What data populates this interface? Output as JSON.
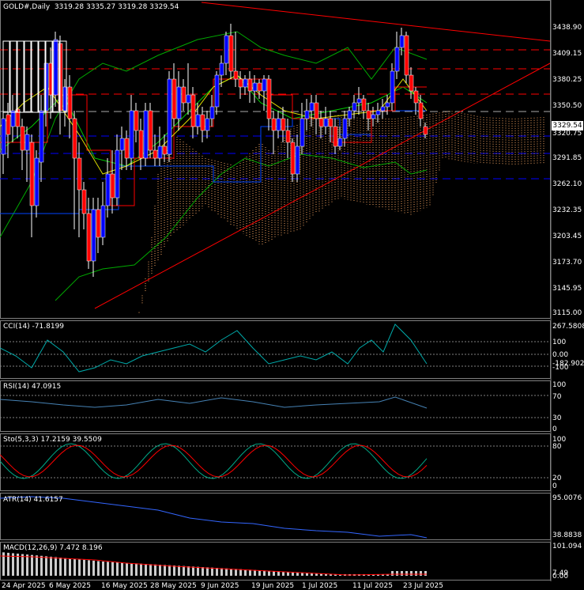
{
  "header": {
    "symbol": "GOLD#,Daily",
    "ohlc": "3319.28 3335.27 3319.28 3329.54"
  },
  "current_price": "3329.54",
  "price_axis": [
    "3438.90",
    "3409.15",
    "3380.25",
    "3350.50",
    "3320.75",
    "3291.85",
    "3262.10",
    "3232.35",
    "3203.45",
    "3173.70",
    "3145.95",
    "3115.00"
  ],
  "date_axis": [
    "24 Apr 2025",
    "6 May 2025",
    "16 May 2025",
    "28 May 2025",
    "9 Jun 2025",
    "19 Jun 2025",
    "1 Jul 2025",
    "11 Jul 2025",
    "23 Jul 2025"
  ],
  "panels": {
    "cci": {
      "label": "CCI(14) -71.8199",
      "scale": [
        "267.5808",
        "100",
        "0.00",
        "-100",
        "-182.9024"
      ]
    },
    "rsi": {
      "label": "RSI(14) 47.0915",
      "scale": [
        "100",
        "70",
        "30",
        "0"
      ]
    },
    "stoch": {
      "label": "Sto(5,3,3) 17.2159 39.5509",
      "scale": [
        "100",
        "80",
        "20",
        "0"
      ]
    },
    "atr": {
      "label": "ATR(14) 41.6157",
      "scale": [
        "95.0076",
        "38.8838"
      ]
    },
    "macd": {
      "label": "MACD(12,26,9) 7.472 8.196",
      "scale": [
        "101.094",
        "7.49",
        "0.00"
      ]
    }
  },
  "colors": {
    "background": "#000000",
    "bull": "#0000ff",
    "bear": "#ff0000",
    "trendline": "#ff0000",
    "ichimoku_cloud": "#f4a460",
    "envelope": "#00cc00",
    "oscillator_main": "#4682b4",
    "oscillator_signal": "#ff0000",
    "grid": "#808080"
  }
}
